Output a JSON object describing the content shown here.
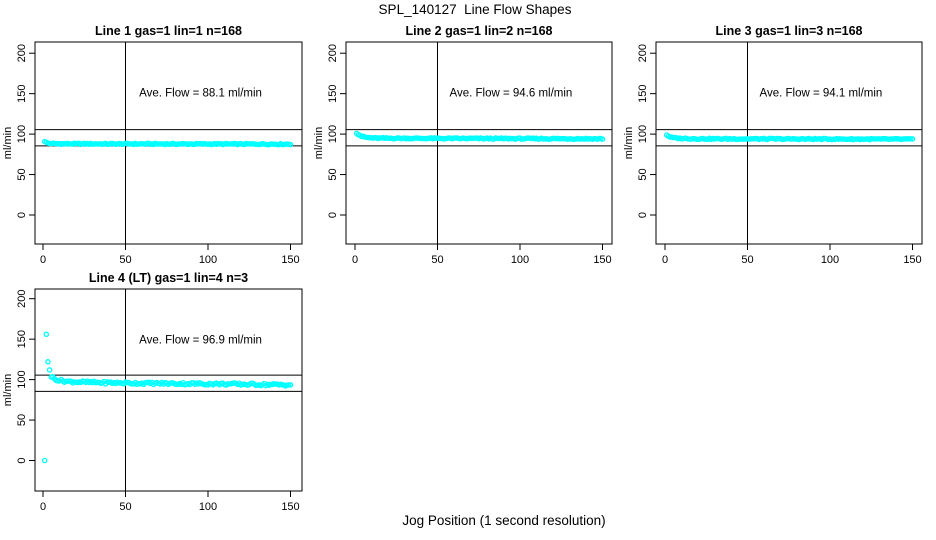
{
  "figure": {
    "main_title": "SPL_140127  Line Flow Shapes",
    "x_axis_label": "Jog Position (1 second resolution)",
    "y_axis_label": "ml/min",
    "point_color": "#00ffff",
    "axis_color": "#000000",
    "background_color": "#ffffff"
  },
  "chart_data": [
    {
      "type": "scatter",
      "title": "Line 1 gas=1 lin=1 n=168",
      "annotation": "Ave. Flow =  88.1  ml/min",
      "ave_flow_ml_min": 88.1,
      "n": 168,
      "xlabel": "Jog Position (1 second resolution)",
      "ylabel": "ml/min",
      "xlim": [
        0,
        150
      ],
      "ylim": [
        0,
        200
      ],
      "x_ticks": [
        0,
        50,
        100,
        150
      ],
      "y_ticks": [
        0,
        50,
        100,
        150,
        200
      ],
      "ref_lines": {
        "vertical_x": 50,
        "horizontal_y": [
          105.5,
          85.5
        ]
      },
      "series": {
        "name": "flow",
        "count": 150,
        "x_start": 1,
        "x_end": 150,
        "anchors": [
          [
            1,
            91.2
          ],
          [
            2,
            89.6
          ],
          [
            3,
            88.8
          ],
          [
            6,
            88.2
          ],
          [
            20,
            88.0
          ],
          [
            150,
            87.6
          ]
        ],
        "jitter": 0.7
      },
      "outliers": []
    },
    {
      "type": "scatter",
      "title": "Line 2 gas=1 lin=2 n=168",
      "annotation": "Ave. Flow =  94.6  ml/min",
      "ave_flow_ml_min": 94.6,
      "n": 168,
      "xlabel": "Jog Position (1 second resolution)",
      "ylabel": "ml/min",
      "xlim": [
        0,
        150
      ],
      "ylim": [
        0,
        200
      ],
      "x_ticks": [
        0,
        50,
        100,
        150
      ],
      "y_ticks": [
        0,
        50,
        100,
        150,
        200
      ],
      "ref_lines": {
        "vertical_x": 50,
        "horizontal_y": [
          105.5,
          85.5
        ]
      },
      "series": {
        "name": "flow",
        "count": 150,
        "x_start": 1,
        "x_end": 150,
        "anchors": [
          [
            1,
            101.5
          ],
          [
            2,
            99.8
          ],
          [
            4,
            97.3
          ],
          [
            7,
            95.8
          ],
          [
            12,
            95.0
          ],
          [
            40,
            94.7
          ],
          [
            150,
            94.2
          ]
        ],
        "jitter": 0.7
      },
      "outliers": []
    },
    {
      "type": "scatter",
      "title": "Line 3 gas=1 lin=3 n=168",
      "annotation": "Ave. Flow =  94.1  ml/min",
      "ave_flow_ml_min": 94.1,
      "n": 168,
      "xlabel": "Jog Position (1 second resolution)",
      "ylabel": "ml/min",
      "xlim": [
        0,
        150
      ],
      "ylim": [
        0,
        200
      ],
      "x_ticks": [
        0,
        50,
        100,
        150
      ],
      "y_ticks": [
        0,
        50,
        100,
        150,
        200
      ],
      "ref_lines": {
        "vertical_x": 50,
        "horizontal_y": [
          105.5,
          85.5
        ]
      },
      "series": {
        "name": "flow",
        "count": 150,
        "x_start": 1,
        "x_end": 150,
        "anchors": [
          [
            1,
            99.2
          ],
          [
            2,
            97.6
          ],
          [
            4,
            95.8
          ],
          [
            8,
            94.8
          ],
          [
            20,
            94.2
          ],
          [
            150,
            93.7
          ]
        ],
        "jitter": 0.7
      },
      "outliers": []
    },
    {
      "type": "scatter",
      "title": "Line 4 (LT) gas=1 lin=4 n=3",
      "annotation": "Ave. Flow =  96.9  ml/min",
      "ave_flow_ml_min": 96.9,
      "n": 3,
      "xlabel": "Jog Position (1 second resolution)",
      "ylabel": "ml/min",
      "xlim": [
        0,
        150
      ],
      "ylim": [
        0,
        200
      ],
      "x_ticks": [
        0,
        50,
        100,
        150
      ],
      "y_ticks": [
        0,
        50,
        100,
        150,
        200
      ],
      "ref_lines": {
        "vertical_x": 50,
        "horizontal_y": [
          105.5,
          85.5
        ]
      },
      "series": {
        "name": "flow",
        "count": 146,
        "x_start": 5,
        "x_end": 150,
        "anchors": [
          [
            5,
            104
          ],
          [
            7,
            101
          ],
          [
            10,
            99
          ],
          [
            16,
            97.5
          ],
          [
            30,
            96.5
          ],
          [
            60,
            95.5
          ],
          [
            100,
            94.8
          ],
          [
            150,
            93.5
          ]
        ],
        "jitter": 1.5
      },
      "outliers": [
        [
          1,
          0
        ],
        [
          2,
          156
        ],
        [
          3,
          122
        ],
        [
          4,
          112
        ]
      ]
    }
  ]
}
